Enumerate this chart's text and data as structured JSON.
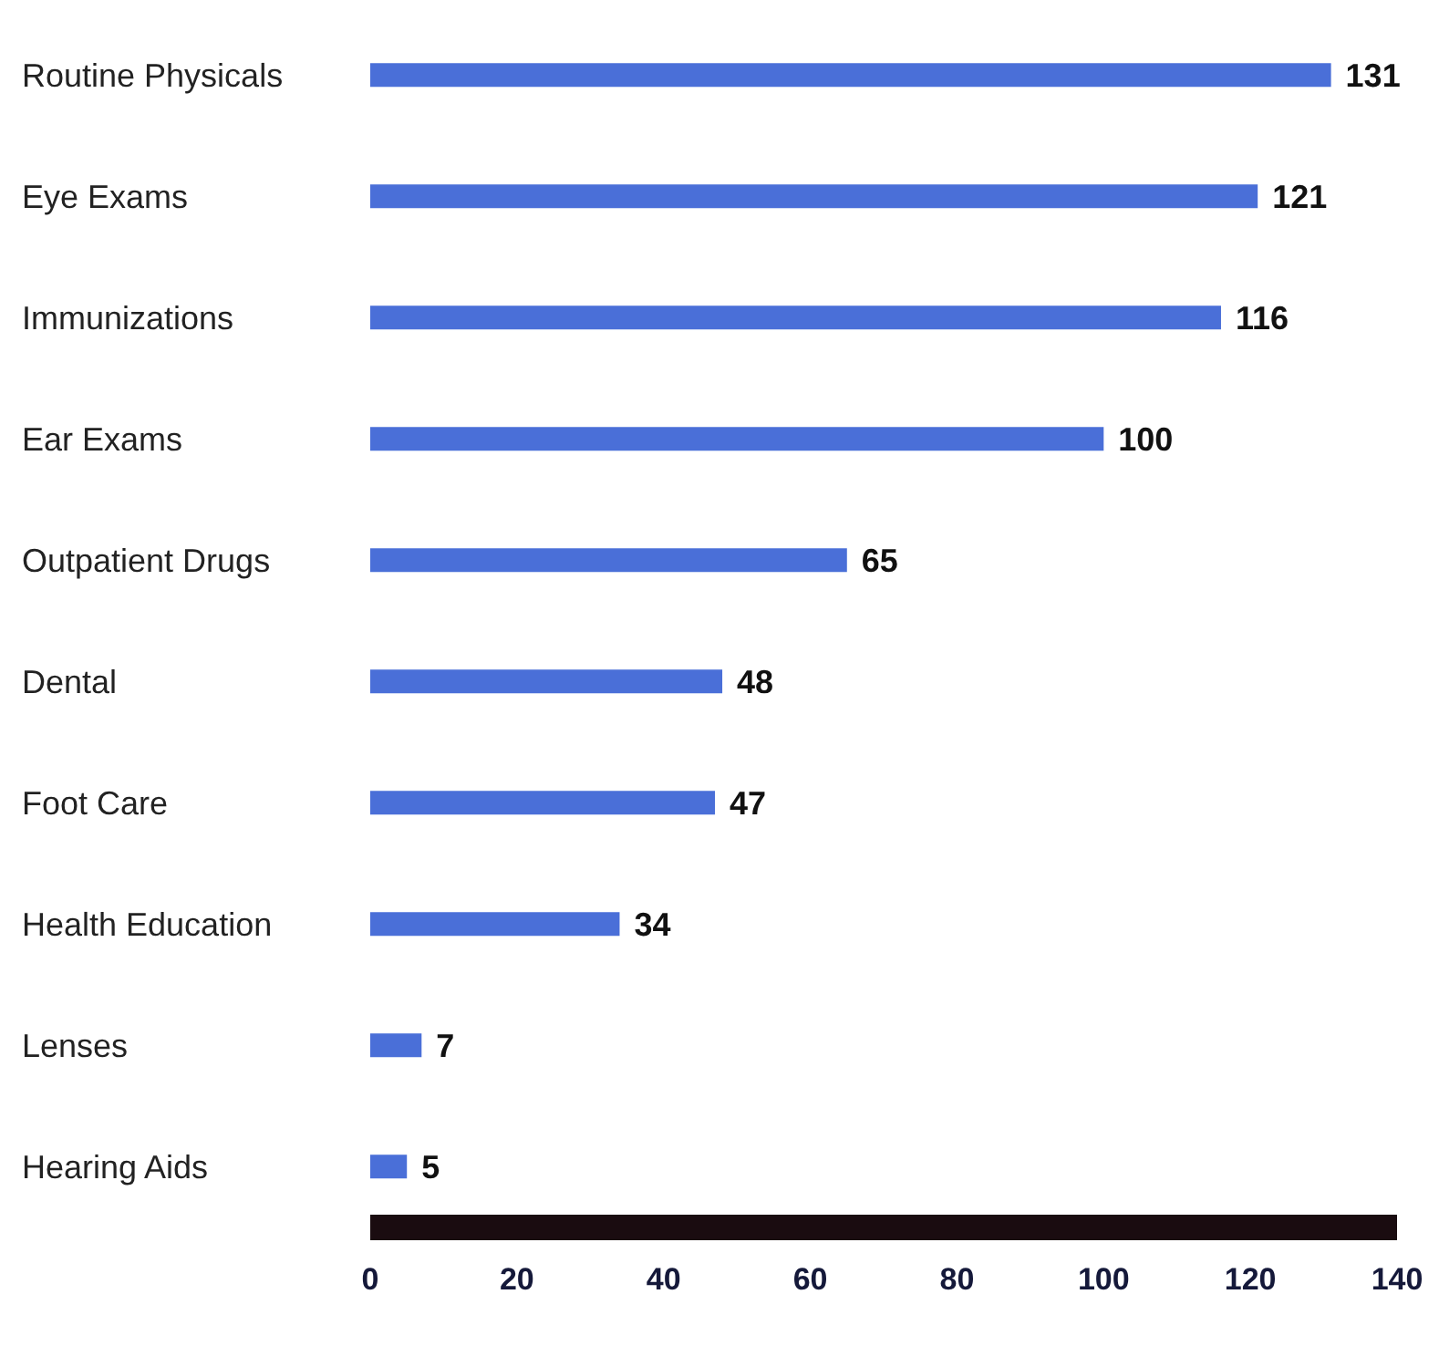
{
  "chart_data": {
    "type": "bar",
    "orientation": "horizontal",
    "categories": [
      "Routine Physicals",
      "Eye Exams",
      "Immunizations",
      "Ear Exams",
      "Outpatient Drugs",
      "Dental",
      "Foot Care",
      "Health Education",
      "Lenses",
      "Hearing Aids"
    ],
    "values": [
      131,
      121,
      116,
      100,
      65,
      48,
      47,
      34,
      7,
      5
    ],
    "color": "#4a6fd8",
    "xlim": [
      0,
      140
    ],
    "xticks": [
      0,
      20,
      40,
      60,
      80,
      100,
      120,
      140
    ],
    "data_labels": true
  }
}
